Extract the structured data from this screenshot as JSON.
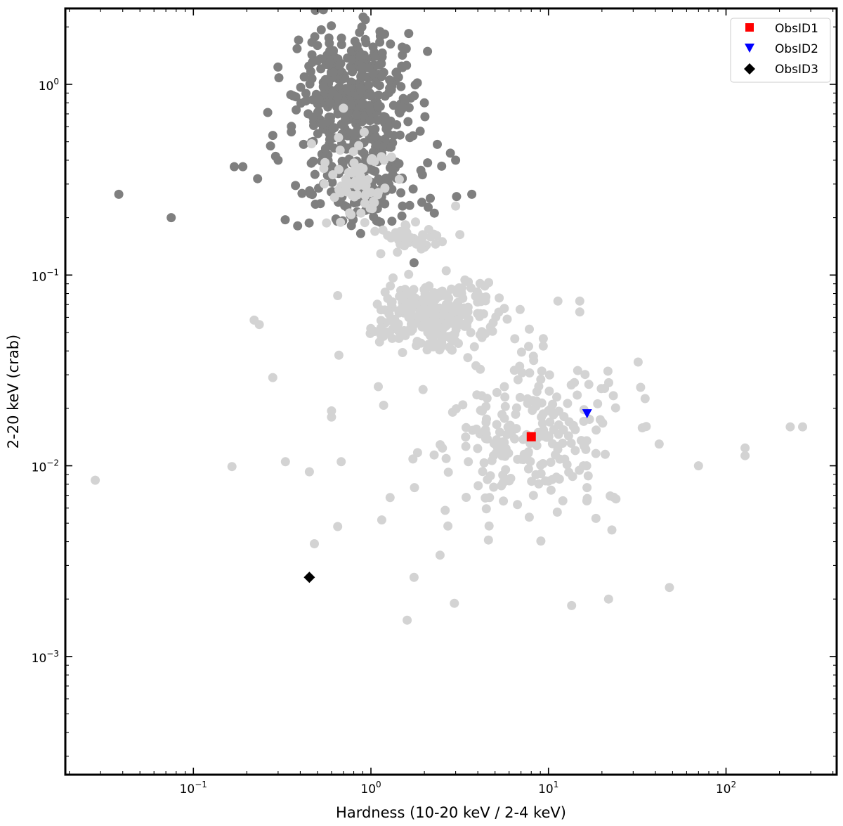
{
  "chart_data": {
    "type": "scatter",
    "xlabel": "Hardness (10-20 keV / 2-4 keV)",
    "ylabel": "2-20 keV (crab)",
    "xscale": "log",
    "yscale": "log",
    "xlim": [
      0.019,
      420
    ],
    "ylim": [
      0.00024,
      2.5
    ],
    "xticks": [
      {
        "value": 0.1,
        "label": "10",
        "exp": "−1"
      },
      {
        "value": 1,
        "label": "10",
        "exp": "0"
      },
      {
        "value": 10,
        "label": "10",
        "exp": "1"
      },
      {
        "value": 100,
        "label": "10",
        "exp": "2"
      }
    ],
    "yticks": [
      {
        "value": 0.001,
        "label": "10",
        "exp": "−3"
      },
      {
        "value": 0.01,
        "label": "10",
        "exp": "−2"
      },
      {
        "value": 0.1,
        "label": "10",
        "exp": "−1"
      },
      {
        "value": 1,
        "label": "10",
        "exp": "0"
      }
    ],
    "grid": false,
    "legend_position": "top-right",
    "colors": {
      "dark_points": "#7f7f7f",
      "light_points": "#d3d3d3",
      "ObsID1": "#ff0000",
      "ObsID2": "#0000ff",
      "ObsID3": "#000000"
    },
    "background_clusters": [
      {
        "color": "dark",
        "count": 380,
        "cx": 0.8,
        "cy": 0.85,
        "sx": 0.16,
        "sy": 0.18
      },
      {
        "color": "dark",
        "count": 150,
        "cx": 0.95,
        "cy": 0.3,
        "sx": 0.17,
        "sy": 0.12
      },
      {
        "color": "light",
        "count": 70,
        "cx": 0.85,
        "cy": 0.3,
        "sx": 0.1,
        "sy": 0.1
      },
      {
        "color": "light",
        "count": 40,
        "cx": 1.6,
        "cy": 0.16,
        "sx": 0.12,
        "sy": 0.04
      },
      {
        "color": "light",
        "count": 330,
        "cx": 2.3,
        "cy": 0.062,
        "sx": 0.16,
        "sy": 0.09
      },
      {
        "color": "light",
        "count": 230,
        "cx": 8.0,
        "cy": 0.014,
        "sx": 0.24,
        "sy": 0.2
      }
    ],
    "background_points": [
      {
        "x": 0.038,
        "y": 0.265,
        "color": "dark"
      },
      {
        "x": 0.075,
        "y": 0.2,
        "color": "dark"
      },
      {
        "x": 0.17,
        "y": 0.37,
        "color": "dark"
      },
      {
        "x": 0.19,
        "y": 0.37,
        "color": "dark"
      },
      {
        "x": 0.23,
        "y": 0.32,
        "color": "dark"
      },
      {
        "x": 0.28,
        "y": 0.54,
        "color": "dark"
      },
      {
        "x": 0.3,
        "y": 0.4,
        "color": "dark"
      },
      {
        "x": 0.58,
        "y": 1.75,
        "color": "dark"
      },
      {
        "x": 0.5,
        "y": 1.6,
        "color": "dark"
      },
      {
        "x": 2.0,
        "y": 0.8,
        "color": "dark"
      },
      {
        "x": 3.7,
        "y": 0.265,
        "color": "dark"
      },
      {
        "x": 1.75,
        "y": 0.116,
        "color": "dark"
      },
      {
        "x": 3.0,
        "y": 0.4,
        "color": "dark"
      },
      {
        "x": 0.028,
        "y": 0.0084,
        "color": "light"
      },
      {
        "x": 0.165,
        "y": 0.0099,
        "color": "light"
      },
      {
        "x": 0.22,
        "y": 0.058,
        "color": "light"
      },
      {
        "x": 0.235,
        "y": 0.055,
        "color": "light"
      },
      {
        "x": 0.28,
        "y": 0.029,
        "color": "light"
      },
      {
        "x": 0.33,
        "y": 0.0105,
        "color": "light"
      },
      {
        "x": 0.45,
        "y": 0.0093,
        "color": "light"
      },
      {
        "x": 0.48,
        "y": 0.0039,
        "color": "light"
      },
      {
        "x": 0.6,
        "y": 0.0194,
        "color": "light"
      },
      {
        "x": 0.6,
        "y": 0.018,
        "color": "light"
      },
      {
        "x": 0.65,
        "y": 0.0048,
        "color": "light"
      },
      {
        "x": 0.68,
        "y": 0.0105,
        "color": "light"
      },
      {
        "x": 0.66,
        "y": 0.038,
        "color": "light"
      },
      {
        "x": 1.15,
        "y": 0.0052,
        "color": "light"
      },
      {
        "x": 1.1,
        "y": 0.026,
        "color": "light"
      },
      {
        "x": 1.6,
        "y": 0.00155,
        "color": "light"
      },
      {
        "x": 1.75,
        "y": 0.0026,
        "color": "light"
      },
      {
        "x": 2.95,
        "y": 0.0019,
        "color": "light"
      },
      {
        "x": 2.45,
        "y": 0.0034,
        "color": "light"
      },
      {
        "x": 13.5,
        "y": 0.00185,
        "color": "light"
      },
      {
        "x": 21.8,
        "y": 0.002,
        "color": "light"
      },
      {
        "x": 48.0,
        "y": 0.0023,
        "color": "light"
      },
      {
        "x": 32.0,
        "y": 0.035,
        "color": "light"
      },
      {
        "x": 35.0,
        "y": 0.0225,
        "color": "light"
      },
      {
        "x": 42.0,
        "y": 0.013,
        "color": "light"
      },
      {
        "x": 70.0,
        "y": 0.01,
        "color": "light"
      },
      {
        "x": 128.0,
        "y": 0.0124,
        "color": "light"
      },
      {
        "x": 128.0,
        "y": 0.0113,
        "color": "light"
      },
      {
        "x": 230.0,
        "y": 0.016,
        "color": "light"
      },
      {
        "x": 270.0,
        "y": 0.016,
        "color": "light"
      },
      {
        "x": 15.0,
        "y": 0.073,
        "color": "light"
      },
      {
        "x": 15.0,
        "y": 0.064,
        "color": "light"
      },
      {
        "x": 11.3,
        "y": 0.073,
        "color": "light"
      },
      {
        "x": 7.8,
        "y": 0.052,
        "color": "light"
      },
      {
        "x": 3.0,
        "y": 0.23,
        "color": "light"
      },
      {
        "x": 0.65,
        "y": 0.078,
        "color": "light"
      },
      {
        "x": 0.7,
        "y": 0.75,
        "color": "light"
      },
      {
        "x": 18.5,
        "y": 0.0053,
        "color": "light"
      },
      {
        "x": 24.0,
        "y": 0.0067,
        "color": "light"
      }
    ],
    "highlight_series": [
      {
        "name": "ObsID1",
        "marker": "square",
        "color": "#ff0000",
        "x": 8.0,
        "y": 0.0142
      },
      {
        "name": "ObsID2",
        "marker": "triangle-down",
        "color": "#0000ff",
        "x": 16.5,
        "y": 0.0188
      },
      {
        "name": "ObsID3",
        "marker": "diamond",
        "color": "#000000",
        "x": 0.45,
        "y": 0.0026
      }
    ]
  }
}
